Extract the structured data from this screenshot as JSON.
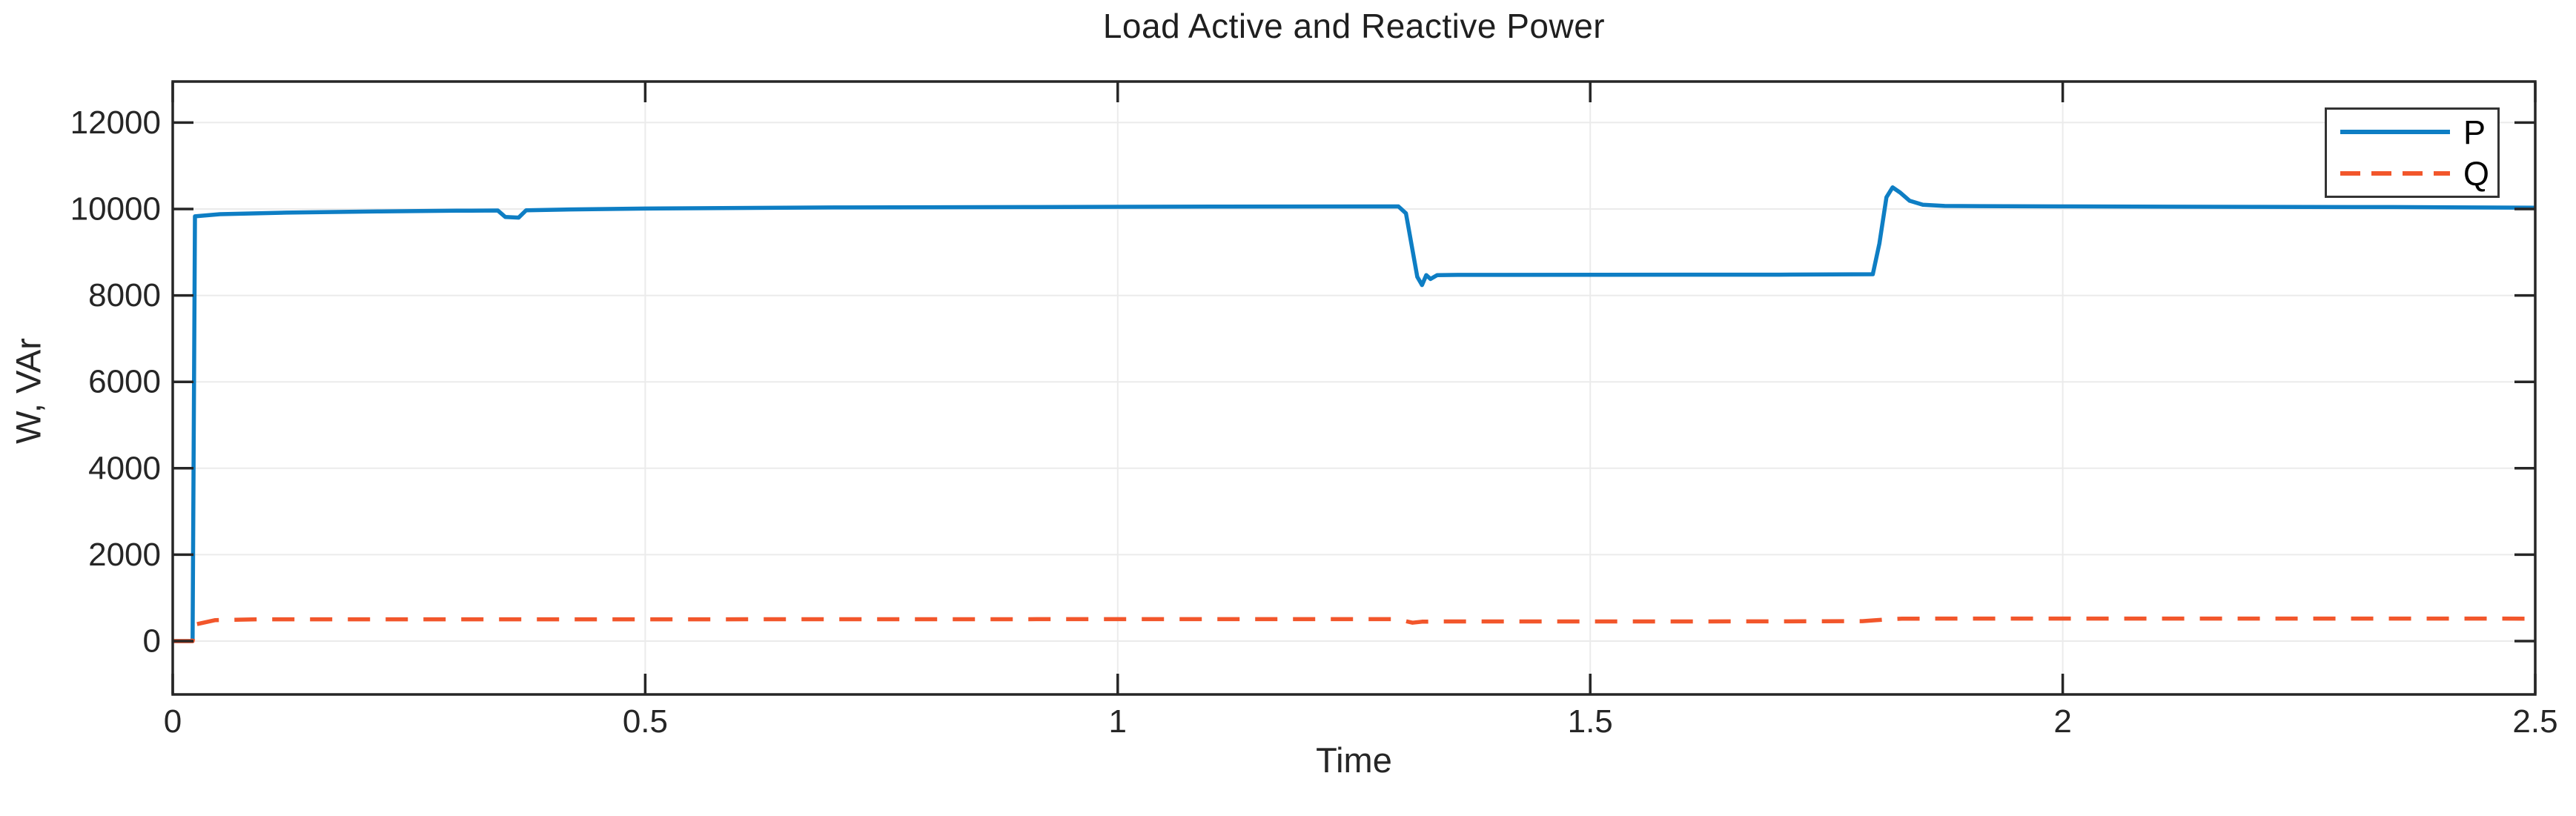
{
  "chart_data": {
    "type": "line",
    "title": "Load Active and Reactive Power",
    "xlabel": "Time",
    "ylabel": "W, VAr",
    "xlim": [
      0,
      2.5
    ],
    "ylim": [
      -1235,
      12950
    ],
    "x_ticks": [
      0,
      0.5,
      1,
      1.5,
      2,
      2.5
    ],
    "x_tick_labels": [
      "0",
      "0.5",
      "1",
      "1.5",
      "2",
      "2.5"
    ],
    "y_ticks": [
      0,
      2000,
      4000,
      6000,
      8000,
      10000,
      12000
    ],
    "y_tick_labels": [
      "0",
      "2000",
      "4000",
      "6000",
      "8000",
      "10000",
      "12000"
    ],
    "grid": true,
    "legend_position": "top-right",
    "axis_color": "#262626",
    "grid_color": "#ebebeb",
    "series": [
      {
        "name": "P",
        "color": "#0e7ec4",
        "style": "solid",
        "points": [
          [
            0,
            0
          ],
          [
            0.021,
            0
          ],
          [
            0.0235,
            9830
          ],
          [
            0.05,
            9880
          ],
          [
            0.12,
            9915
          ],
          [
            0.22,
            9945
          ],
          [
            0.3,
            9960
          ],
          [
            0.344,
            9965
          ],
          [
            0.352,
            9815
          ],
          [
            0.366,
            9800
          ],
          [
            0.374,
            9970
          ],
          [
            0.42,
            9990
          ],
          [
            0.5,
            10010
          ],
          [
            0.7,
            10035
          ],
          [
            0.9,
            10045
          ],
          [
            1.1,
            10055
          ],
          [
            1.297,
            10060
          ],
          [
            1.305,
            9900
          ],
          [
            1.317,
            8430
          ],
          [
            1.322,
            8240
          ],
          [
            1.3265,
            8470
          ],
          [
            1.331,
            8380
          ],
          [
            1.338,
            8470
          ],
          [
            1.36,
            8475
          ],
          [
            1.6,
            8480
          ],
          [
            1.7,
            8480
          ],
          [
            1.799,
            8490
          ],
          [
            1.806,
            9200
          ],
          [
            1.8135,
            10270
          ],
          [
            1.82,
            10500
          ],
          [
            1.828,
            10380
          ],
          [
            1.838,
            10190
          ],
          [
            1.852,
            10100
          ],
          [
            1.875,
            10070
          ],
          [
            2.0,
            10060
          ],
          [
            2.2,
            10050
          ],
          [
            2.35,
            10045
          ],
          [
            2.5,
            10030
          ]
        ]
      },
      {
        "name": "Q",
        "color": "#f2562b",
        "style": "dashed",
        "points": [
          [
            0,
            0
          ],
          [
            0.021,
            0
          ],
          [
            0.025,
            390
          ],
          [
            0.045,
            485
          ],
          [
            0.09,
            505
          ],
          [
            0.5,
            505
          ],
          [
            1.0,
            508
          ],
          [
            1.293,
            508
          ],
          [
            1.303,
            470
          ],
          [
            1.312,
            425
          ],
          [
            1.322,
            450
          ],
          [
            1.34,
            455
          ],
          [
            1.5,
            455
          ],
          [
            1.7,
            457
          ],
          [
            1.788,
            462
          ],
          [
            1.8,
            480
          ],
          [
            1.815,
            505
          ],
          [
            1.83,
            520
          ],
          [
            2.0,
            522
          ],
          [
            2.25,
            522
          ],
          [
            2.5,
            520
          ]
        ]
      }
    ]
  }
}
